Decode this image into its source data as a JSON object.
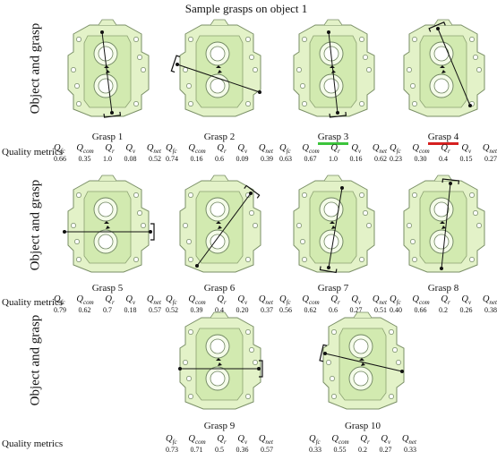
{
  "title": "Sample grasps on object 1",
  "row_label": "Object and grasp",
  "metrics_label": "Quality metrics",
  "metric_headers": [
    {
      "sym": "Q",
      "sub": "fc"
    },
    {
      "sym": "Q",
      "sub": "com"
    },
    {
      "sym": "Q",
      "sub": "r"
    },
    {
      "sym": "Q",
      "sub": "v"
    },
    {
      "sym": "Q",
      "sub": "net"
    }
  ],
  "underline_colors": {
    "green": "#3cc43c",
    "red": "#d62020"
  },
  "grasps": [
    {
      "label": "Grasp 1",
      "values": [
        "0.66",
        "0.35",
        "1.0",
        "0.08",
        "0.52"
      ],
      "underline": ""
    },
    {
      "label": "Grasp 2",
      "values": [
        "0.74",
        "0.16",
        "0.6",
        "0.09",
        "0.39"
      ],
      "underline": ""
    },
    {
      "label": "Grasp 3",
      "values": [
        "0.63",
        "0.67",
        "1.0",
        "0.16",
        "0.62"
      ],
      "underline": "green"
    },
    {
      "label": "Grasp 4",
      "values": [
        "0.23",
        "0.30",
        "0.4",
        "0.15",
        "0.27"
      ],
      "underline": "red"
    },
    {
      "label": "Grasp 5",
      "values": [
        "0.79",
        "0.62",
        "0.7",
        "0.18",
        "0.57"
      ],
      "underline": ""
    },
    {
      "label": "Grasp 6",
      "values": [
        "0.52",
        "0.39",
        "0.4",
        "0.20",
        "0.37"
      ],
      "underline": ""
    },
    {
      "label": "Grasp 7",
      "values": [
        "0.56",
        "0.62",
        "0.6",
        "0.27",
        "0.51"
      ],
      "underline": ""
    },
    {
      "label": "Grasp 8",
      "values": [
        "0.40",
        "0.66",
        "0.2",
        "0.26",
        "0.38"
      ],
      "underline": ""
    },
    {
      "label": "Grasp 9",
      "values": [
        "0.73",
        "0.71",
        "0.5",
        "0.36",
        "0.57"
      ],
      "underline": ""
    },
    {
      "label": "Grasp 10",
      "values": [
        "0.33",
        "0.55",
        "0.2",
        "0.27",
        "0.33"
      ],
      "underline": ""
    }
  ]
}
